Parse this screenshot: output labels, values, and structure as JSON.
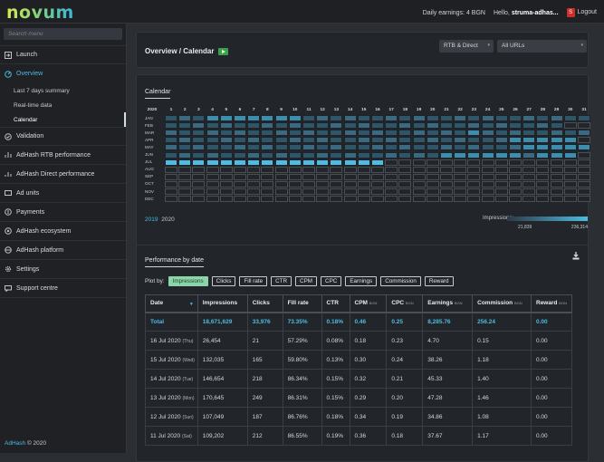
{
  "header": {
    "logo_text": "novum",
    "daily_earnings": "Daily earnings: 4 BGN",
    "hello_prefix": "Hello,",
    "user_name": "struma-adhas...",
    "user_badge": "S",
    "logout": "Logout"
  },
  "sidebar": {
    "search_placeholder": "Search menu",
    "launch": "Launch",
    "overview": "Overview",
    "sub_items": [
      "Last 7 days summary",
      "Real-time data",
      "Calendar"
    ],
    "items": [
      "Validation",
      "AdHash RTB performance",
      "AdHash Direct performance",
      "Ad units",
      "Payments",
      "AdHash ecosystem",
      "AdHash platform",
      "Settings",
      "Support centre"
    ],
    "footer_brand": "AdHash",
    "footer_year": "© 2020"
  },
  "overview": {
    "title": "Overview / Calendar",
    "filter_type": "RTB & Direct",
    "filter_url": "All URLs"
  },
  "calendar": {
    "title": "Calendar",
    "year_label": "2020",
    "days": [
      "1",
      "2",
      "3",
      "4",
      "5",
      "6",
      "7",
      "8",
      "9",
      "10",
      "11",
      "12",
      "13",
      "14",
      "15",
      "16",
      "17",
      "18",
      "19",
      "20",
      "21",
      "22",
      "23",
      "24",
      "25",
      "26",
      "27",
      "28",
      "29",
      "30",
      "31"
    ],
    "months": [
      "JAN",
      "FEB",
      "MAR",
      "APR",
      "MAY",
      "JUN",
      "JUL",
      "AUG",
      "SEP",
      "OCT",
      "NOV",
      "DEC"
    ],
    "years": [
      "2019",
      "2020"
    ],
    "legend_label": "Impressions:",
    "legend_min": "21,839",
    "legend_max": "236,314",
    "colors": {
      "empty": "#22252a",
      "low": "#2f4a5c",
      "high": "#4dbbe2"
    }
  },
  "performance": {
    "title": "Performance by date",
    "plot_by_label": "Plot by:",
    "chips": [
      "Impressions",
      "Clicks",
      "Fill rate",
      "CTR",
      "CPM",
      "CPC",
      "Earnings",
      "Commission",
      "Reward"
    ],
    "columns": [
      "Date",
      "Impressions",
      "Clicks",
      "Fill rate",
      "CTR",
      "CPM",
      "CPC",
      "Earnings",
      "Commission",
      "Reward"
    ],
    "currency_suffix": "BGN",
    "total": [
      "Total",
      "18,671,629",
      "33,976",
      "73.35%",
      "0.18%",
      "0.46",
      "0.25",
      "8,285.76",
      "256.24",
      "0.00"
    ],
    "rows": [
      {
        "date": "16 Jul 2020",
        "dow": "(Thu)",
        "cells": [
          "26,454",
          "21",
          "57.29%",
          "0.08%",
          "0.18",
          "0.23",
          "4.70",
          "0.15",
          "0.00"
        ]
      },
      {
        "date": "15 Jul 2020",
        "dow": "(Wed)",
        "cells": [
          "132,035",
          "165",
          "59.80%",
          "0.13%",
          "0.30",
          "0.24",
          "38.26",
          "1.18",
          "0.00"
        ]
      },
      {
        "date": "14 Jul 2020",
        "dow": "(Tue)",
        "cells": [
          "146,654",
          "218",
          "86.34%",
          "0.15%",
          "0.32",
          "0.21",
          "45.33",
          "1.40",
          "0.00"
        ]
      },
      {
        "date": "13 Jul 2020",
        "dow": "(Mon)",
        "cells": [
          "170,645",
          "249",
          "86.31%",
          "0.15%",
          "0.29",
          "0.20",
          "47.28",
          "1.46",
          "0.00"
        ]
      },
      {
        "date": "12 Jul 2020",
        "dow": "(Sun)",
        "cells": [
          "107,049",
          "187",
          "86.76%",
          "0.18%",
          "0.34",
          "0.19",
          "34.86",
          "1.08",
          "0.00"
        ]
      },
      {
        "date": "11 Jul 2020",
        "dow": "(Sat)",
        "cells": [
          "109,202",
          "212",
          "86.55%",
          "0.19%",
          "0.36",
          "0.18",
          "37.67",
          "1.17",
          "0.00"
        ]
      }
    ]
  }
}
